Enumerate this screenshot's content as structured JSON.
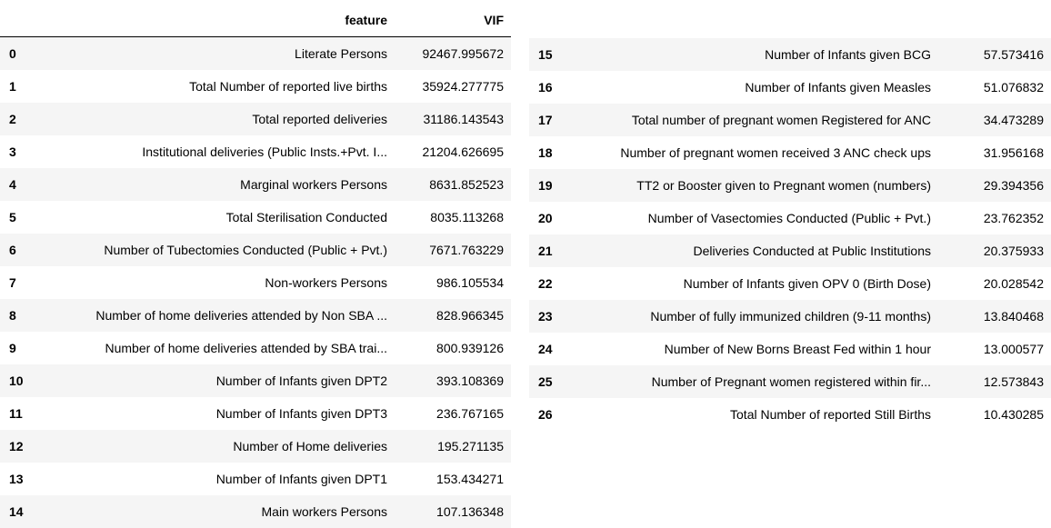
{
  "left_table": {
    "headers": {
      "index": "",
      "feature": "feature",
      "vif": "VIF"
    },
    "rows": [
      {
        "index": "0",
        "feature": "Literate Persons",
        "vif": "92467.995672"
      },
      {
        "index": "1",
        "feature": "Total Number of reported live births",
        "vif": "35924.277775"
      },
      {
        "index": "2",
        "feature": "Total reported deliveries",
        "vif": "31186.143543"
      },
      {
        "index": "3",
        "feature": "Institutional deliveries (Public Insts.+Pvt. I...",
        "vif": "21204.626695"
      },
      {
        "index": "4",
        "feature": "Marginal workers Persons",
        "vif": "8631.852523"
      },
      {
        "index": "5",
        "feature": "Total Sterilisation Conducted",
        "vif": "8035.113268"
      },
      {
        "index": "6",
        "feature": "Number of Tubectomies Conducted (Public + Pvt.)",
        "vif": "7671.763229"
      },
      {
        "index": "7",
        "feature": "Non-workers Persons",
        "vif": "986.105534"
      },
      {
        "index": "8",
        "feature": "Number of home deliveries attended by Non SBA ...",
        "vif": "828.966345"
      },
      {
        "index": "9",
        "feature": "Number of home deliveries attended by SBA trai...",
        "vif": "800.939126"
      },
      {
        "index": "10",
        "feature": "Number of Infants given DPT2",
        "vif": "393.108369"
      },
      {
        "index": "11",
        "feature": "Number of Infants given DPT3",
        "vif": "236.767165"
      },
      {
        "index": "12",
        "feature": "Number of Home deliveries",
        "vif": "195.271135"
      },
      {
        "index": "13",
        "feature": "Number of Infants given DPT1",
        "vif": "153.434271"
      },
      {
        "index": "14",
        "feature": "Main workers Persons",
        "vif": "107.136348"
      }
    ]
  },
  "right_table": {
    "rows": [
      {
        "index": "15",
        "feature": "Number of Infants given BCG",
        "vif": "57.573416"
      },
      {
        "index": "16",
        "feature": "Number of Infants given Measles",
        "vif": "51.076832"
      },
      {
        "index": "17",
        "feature": "Total number of pregnant women Registered for ANC",
        "vif": "34.473289"
      },
      {
        "index": "18",
        "feature": "Number of pregnant women received 3 ANC check ups",
        "vif": "31.956168"
      },
      {
        "index": "19",
        "feature": "TT2 or Booster given to Pregnant women (numbers)",
        "vif": "29.394356"
      },
      {
        "index": "20",
        "feature": "Number of Vasectomies Conducted (Public + Pvt.)",
        "vif": "23.762352"
      },
      {
        "index": "21",
        "feature": "Deliveries Conducted at Public Institutions",
        "vif": "20.375933"
      },
      {
        "index": "22",
        "feature": "Number of Infants given OPV 0 (Birth Dose)",
        "vif": "20.028542"
      },
      {
        "index": "23",
        "feature": "Number of fully immunized children (9-11 months)",
        "vif": "13.840468"
      },
      {
        "index": "24",
        "feature": "Number of New Borns Breast Fed within 1 hour",
        "vif": "13.000577"
      },
      {
        "index": "25",
        "feature": "Number of Pregnant women registered within fir...",
        "vif": "12.573843"
      },
      {
        "index": "26",
        "feature": "Total Number of reported Still Births",
        "vif": "10.430285"
      }
    ]
  },
  "colors": {
    "stripe": "#f5f5f5",
    "header_border": "#000000",
    "text": "#000000"
  }
}
